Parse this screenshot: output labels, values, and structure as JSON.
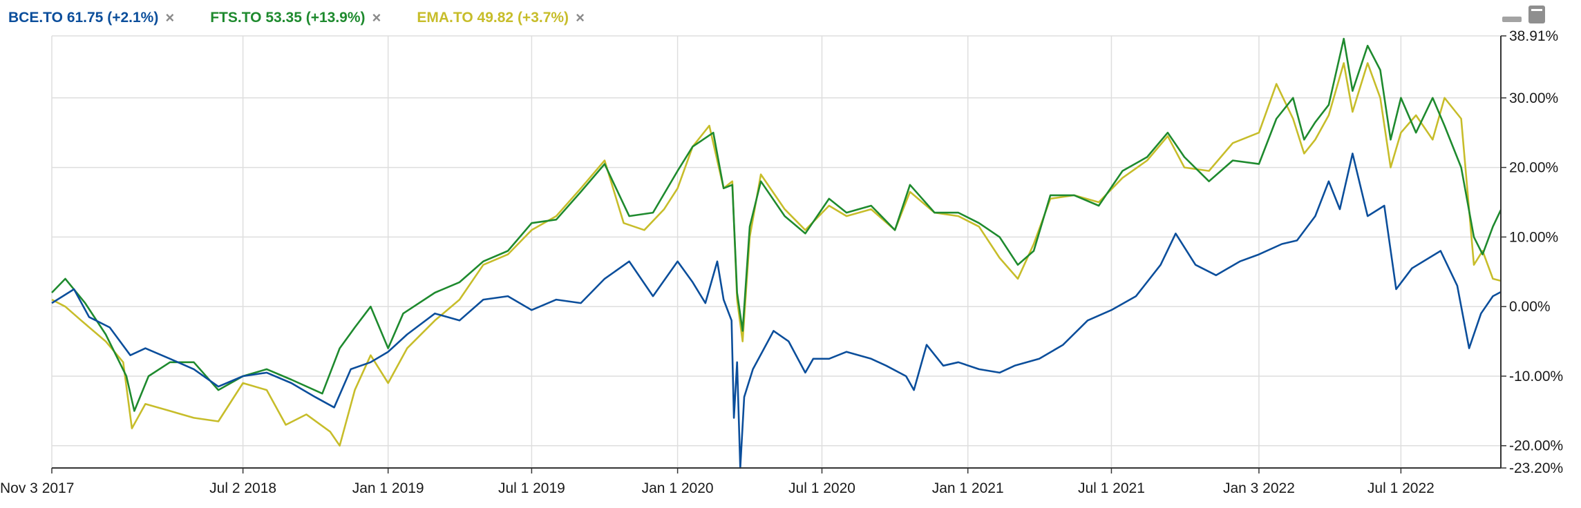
{
  "legend": [
    {
      "ticker": "BCE.TO",
      "price": "61.75",
      "change": "(+2.1%)",
      "color": "#0b4e9b",
      "remove_icon": "×"
    },
    {
      "ticker": "FTS.TO",
      "price": "53.35",
      "change": "(+13.9%)",
      "color": "#1e8a2e",
      "remove_icon": "×"
    },
    {
      "ticker": "EMA.TO",
      "price": "49.82",
      "change": "(+3.7%)",
      "color": "#c7bd2a",
      "remove_icon": "×"
    }
  ],
  "window_controls": {
    "minimize_icon": "minimize-icon",
    "maximize_icon": "maximize-icon"
  },
  "chart_data": {
    "type": "line",
    "title": "",
    "xlabel": "",
    "ylabel": "",
    "x_range": [
      "2017-11-03",
      "2022-11-04"
    ],
    "ylim": [
      -23.2,
      38.91
    ],
    "grid": true,
    "legend_position": "top-left",
    "x_ticks": [
      {
        "label": "Nov 3 2017",
        "date": "2017-11-03"
      },
      {
        "label": "Jul 2 2018",
        "date": "2018-07-02"
      },
      {
        "label": "Jan 1 2019",
        "date": "2019-01-01"
      },
      {
        "label": "Jul 1 2019",
        "date": "2019-07-01"
      },
      {
        "label": "Jan 1 2020",
        "date": "2020-01-01"
      },
      {
        "label": "Jul 1 2020",
        "date": "2020-07-01"
      },
      {
        "label": "Jan 1 2021",
        "date": "2021-01-01"
      },
      {
        "label": "Jul 1 2021",
        "date": "2021-07-01"
      },
      {
        "label": "Jan 3 2022",
        "date": "2022-01-03"
      },
      {
        "label": "Jul 1 2022",
        "date": "2022-07-01"
      }
    ],
    "y_ticks": [
      {
        "label": "38.91%",
        "value": 38.91
      },
      {
        "label": "30.00%",
        "value": 30
      },
      {
        "label": "20.00%",
        "value": 20
      },
      {
        "label": "10.00%",
        "value": 10
      },
      {
        "label": "0.00%",
        "value": 0
      },
      {
        "label": "-10.00%",
        "value": -10
      },
      {
        "label": "-20.00%",
        "value": -20
      },
      {
        "label": "-23.20%",
        "value": -23.2
      }
    ],
    "series": [
      {
        "name": "BCE.TO",
        "color": "#0b4e9b",
        "points": [
          [
            "2017-11-03",
            0.5
          ],
          [
            "2017-12-01",
            2.5
          ],
          [
            "2017-12-20",
            -1.5
          ],
          [
            "2018-01-15",
            -3
          ],
          [
            "2018-02-10",
            -7
          ],
          [
            "2018-03-01",
            -6
          ],
          [
            "2018-04-01",
            -7.5
          ],
          [
            "2018-05-01",
            -9
          ],
          [
            "2018-06-01",
            -11.5
          ],
          [
            "2018-07-02",
            -10
          ],
          [
            "2018-08-01",
            -9.5
          ],
          [
            "2018-09-01",
            -11
          ],
          [
            "2018-10-01",
            -13
          ],
          [
            "2018-10-25",
            -14.5
          ],
          [
            "2018-11-15",
            -9
          ],
          [
            "2018-12-10",
            -8
          ],
          [
            "2019-01-01",
            -6.5
          ],
          [
            "2019-01-25",
            -4
          ],
          [
            "2019-03-01",
            -1
          ],
          [
            "2019-04-01",
            -2
          ],
          [
            "2019-05-01",
            1
          ],
          [
            "2019-06-01",
            1.5
          ],
          [
            "2019-07-01",
            -0.5
          ],
          [
            "2019-08-01",
            1
          ],
          [
            "2019-09-01",
            0.5
          ],
          [
            "2019-10-01",
            4
          ],
          [
            "2019-11-01",
            6.5
          ],
          [
            "2019-12-01",
            1.5
          ],
          [
            "2020-01-01",
            6.5
          ],
          [
            "2020-01-20",
            3.5
          ],
          [
            "2020-02-05",
            0.5
          ],
          [
            "2020-02-20",
            6.5
          ],
          [
            "2020-02-28",
            1
          ],
          [
            "2020-03-09",
            -2
          ],
          [
            "2020-03-12",
            -16
          ],
          [
            "2020-03-16",
            -8
          ],
          [
            "2020-03-20",
            -23.2
          ],
          [
            "2020-03-25",
            -13
          ],
          [
            "2020-04-05",
            -9
          ],
          [
            "2020-05-01",
            -3.5
          ],
          [
            "2020-05-20",
            -5
          ],
          [
            "2020-06-10",
            -9.5
          ],
          [
            "2020-06-20",
            -7.5
          ],
          [
            "2020-07-10",
            -7.5
          ],
          [
            "2020-08-01",
            -6.5
          ],
          [
            "2020-09-01",
            -7.5
          ],
          [
            "2020-09-20",
            -8.5
          ],
          [
            "2020-10-15",
            -10
          ],
          [
            "2020-10-25",
            -12
          ],
          [
            "2020-11-10",
            -5.5
          ],
          [
            "2020-12-01",
            -8.5
          ],
          [
            "2020-12-20",
            -8
          ],
          [
            "2021-01-15",
            -9
          ],
          [
            "2021-02-10",
            -9.5
          ],
          [
            "2021-03-01",
            -8.5
          ],
          [
            "2021-04-01",
            -7.5
          ],
          [
            "2021-05-01",
            -5.5
          ],
          [
            "2021-06-01",
            -2
          ],
          [
            "2021-07-01",
            -0.5
          ],
          [
            "2021-08-01",
            1.5
          ],
          [
            "2021-09-01",
            6
          ],
          [
            "2021-09-20",
            10.5
          ],
          [
            "2021-10-15",
            6
          ],
          [
            "2021-11-10",
            4.5
          ],
          [
            "2021-12-10",
            6.5
          ],
          [
            "2022-01-03",
            7.5
          ],
          [
            "2022-02-01",
            9
          ],
          [
            "2022-02-20",
            9.5
          ],
          [
            "2022-03-15",
            13
          ],
          [
            "2022-04-01",
            18
          ],
          [
            "2022-04-15",
            14
          ],
          [
            "2022-05-01",
            22
          ],
          [
            "2022-05-20",
            13
          ],
          [
            "2022-06-10",
            14.5
          ],
          [
            "2022-06-25",
            2.5
          ],
          [
            "2022-07-15",
            5.5
          ],
          [
            "2022-08-20",
            8
          ],
          [
            "2022-09-10",
            3
          ],
          [
            "2022-09-25",
            -6
          ],
          [
            "2022-10-10",
            -1
          ],
          [
            "2022-10-25",
            1.5
          ],
          [
            "2022-11-04",
            2.1
          ]
        ]
      },
      {
        "name": "FTS.TO",
        "color": "#1e8a2e",
        "points": [
          [
            "2017-11-03",
            2
          ],
          [
            "2017-11-20",
            4
          ],
          [
            "2017-12-15",
            0.5
          ],
          [
            "2018-01-10",
            -4
          ],
          [
            "2018-02-05",
            -10
          ],
          [
            "2018-02-15",
            -15
          ],
          [
            "2018-03-05",
            -10
          ],
          [
            "2018-04-01",
            -8
          ],
          [
            "2018-05-01",
            -8
          ],
          [
            "2018-06-01",
            -12
          ],
          [
            "2018-07-02",
            -10
          ],
          [
            "2018-08-01",
            -9
          ],
          [
            "2018-09-01",
            -10.5
          ],
          [
            "2018-10-10",
            -12.5
          ],
          [
            "2018-11-01",
            -6
          ],
          [
            "2018-11-20",
            -3
          ],
          [
            "2018-12-10",
            0
          ],
          [
            "2019-01-01",
            -6
          ],
          [
            "2019-01-20",
            -1
          ],
          [
            "2019-03-01",
            2
          ],
          [
            "2019-04-01",
            3.5
          ],
          [
            "2019-05-01",
            6.5
          ],
          [
            "2019-06-01",
            8
          ],
          [
            "2019-07-01",
            12
          ],
          [
            "2019-08-01",
            12.5
          ],
          [
            "2019-09-01",
            16.5
          ],
          [
            "2019-10-01",
            20.5
          ],
          [
            "2019-11-01",
            13
          ],
          [
            "2019-12-01",
            13.5
          ],
          [
            "2020-01-01",
            19.5
          ],
          [
            "2020-01-20",
            23
          ],
          [
            "2020-02-15",
            25
          ],
          [
            "2020-02-28",
            17
          ],
          [
            "2020-03-10",
            17.5
          ],
          [
            "2020-03-16",
            2
          ],
          [
            "2020-03-23",
            -3.5
          ],
          [
            "2020-04-01",
            11.5
          ],
          [
            "2020-04-15",
            18
          ],
          [
            "2020-05-15",
            13
          ],
          [
            "2020-06-10",
            10.5
          ],
          [
            "2020-07-10",
            15.5
          ],
          [
            "2020-08-01",
            13.5
          ],
          [
            "2020-09-01",
            14.5
          ],
          [
            "2020-10-01",
            11
          ],
          [
            "2020-10-20",
            17.5
          ],
          [
            "2020-11-20",
            13.5
          ],
          [
            "2020-12-20",
            13.5
          ],
          [
            "2021-01-15",
            12
          ],
          [
            "2021-02-10",
            10
          ],
          [
            "2021-03-05",
            6
          ],
          [
            "2021-03-25",
            8
          ],
          [
            "2021-04-15",
            16
          ],
          [
            "2021-05-15",
            16
          ],
          [
            "2021-06-15",
            14.5
          ],
          [
            "2021-07-15",
            19.5
          ],
          [
            "2021-08-15",
            21.5
          ],
          [
            "2021-09-10",
            25
          ],
          [
            "2021-10-01",
            21.5
          ],
          [
            "2021-11-01",
            18
          ],
          [
            "2021-12-01",
            21
          ],
          [
            "2022-01-03",
            20.5
          ],
          [
            "2022-01-25",
            27
          ],
          [
            "2022-02-15",
            30
          ],
          [
            "2022-03-01",
            24
          ],
          [
            "2022-03-15",
            26.5
          ],
          [
            "2022-04-01",
            29
          ],
          [
            "2022-04-20",
            38.5
          ],
          [
            "2022-05-01",
            31
          ],
          [
            "2022-05-20",
            37.5
          ],
          [
            "2022-06-05",
            34
          ],
          [
            "2022-06-18",
            24
          ],
          [
            "2022-07-01",
            30
          ],
          [
            "2022-07-20",
            25
          ],
          [
            "2022-08-10",
            30
          ],
          [
            "2022-08-25",
            26
          ],
          [
            "2022-09-15",
            20
          ],
          [
            "2022-10-01",
            10
          ],
          [
            "2022-10-12",
            7.5
          ],
          [
            "2022-10-25",
            11.5
          ],
          [
            "2022-11-04",
            13.9
          ]
        ]
      },
      {
        "name": "EMA.TO",
        "color": "#c7bd2a",
        "points": [
          [
            "2017-11-03",
            1
          ],
          [
            "2017-11-20",
            0
          ],
          [
            "2017-12-10",
            -2
          ],
          [
            "2018-01-10",
            -5
          ],
          [
            "2018-02-01",
            -8
          ],
          [
            "2018-02-12",
            -17.5
          ],
          [
            "2018-03-01",
            -14
          ],
          [
            "2018-04-01",
            -15
          ],
          [
            "2018-05-01",
            -16
          ],
          [
            "2018-06-01",
            -16.5
          ],
          [
            "2018-07-02",
            -11
          ],
          [
            "2018-08-01",
            -12
          ],
          [
            "2018-08-25",
            -17
          ],
          [
            "2018-09-20",
            -15.5
          ],
          [
            "2018-10-20",
            -18
          ],
          [
            "2018-11-01",
            -20
          ],
          [
            "2018-11-20",
            -12
          ],
          [
            "2018-12-10",
            -7
          ],
          [
            "2019-01-01",
            -11
          ],
          [
            "2019-01-25",
            -6
          ],
          [
            "2019-03-01",
            -2
          ],
          [
            "2019-04-01",
            1
          ],
          [
            "2019-05-01",
            6
          ],
          [
            "2019-06-01",
            7.5
          ],
          [
            "2019-07-01",
            11
          ],
          [
            "2019-08-01",
            13
          ],
          [
            "2019-09-01",
            17
          ],
          [
            "2019-10-01",
            21
          ],
          [
            "2019-10-25",
            12
          ],
          [
            "2019-11-20",
            11
          ],
          [
            "2019-12-15",
            14
          ],
          [
            "2020-01-01",
            17
          ],
          [
            "2020-01-20",
            23
          ],
          [
            "2020-02-10",
            26
          ],
          [
            "2020-02-28",
            17
          ],
          [
            "2020-03-10",
            18
          ],
          [
            "2020-03-16",
            1
          ],
          [
            "2020-03-23",
            -5
          ],
          [
            "2020-04-01",
            10
          ],
          [
            "2020-04-15",
            19
          ],
          [
            "2020-05-15",
            14
          ],
          [
            "2020-06-10",
            11
          ],
          [
            "2020-07-10",
            14.5
          ],
          [
            "2020-08-01",
            13
          ],
          [
            "2020-09-01",
            14
          ],
          [
            "2020-10-01",
            11
          ],
          [
            "2020-10-20",
            16.5
          ],
          [
            "2020-11-20",
            13.5
          ],
          [
            "2020-12-20",
            13
          ],
          [
            "2021-01-15",
            11.5
          ],
          [
            "2021-02-10",
            7
          ],
          [
            "2021-03-05",
            4
          ],
          [
            "2021-03-25",
            9
          ],
          [
            "2021-04-15",
            15.5
          ],
          [
            "2021-05-15",
            16
          ],
          [
            "2021-06-15",
            15
          ],
          [
            "2021-07-15",
            18.5
          ],
          [
            "2021-08-15",
            21
          ],
          [
            "2021-09-10",
            24.5
          ],
          [
            "2021-10-01",
            20
          ],
          [
            "2021-11-01",
            19.5
          ],
          [
            "2021-12-01",
            23.5
          ],
          [
            "2022-01-03",
            25
          ],
          [
            "2022-01-25",
            32
          ],
          [
            "2022-02-15",
            27
          ],
          [
            "2022-03-01",
            22
          ],
          [
            "2022-03-15",
            24
          ],
          [
            "2022-04-01",
            27.5
          ],
          [
            "2022-04-20",
            35
          ],
          [
            "2022-05-01",
            28
          ],
          [
            "2022-05-20",
            35
          ],
          [
            "2022-06-05",
            30
          ],
          [
            "2022-06-18",
            20
          ],
          [
            "2022-07-01",
            25
          ],
          [
            "2022-07-20",
            27.5
          ],
          [
            "2022-08-10",
            24
          ],
          [
            "2022-08-25",
            30
          ],
          [
            "2022-09-15",
            27
          ],
          [
            "2022-10-01",
            6
          ],
          [
            "2022-10-12",
            8
          ],
          [
            "2022-10-25",
            4
          ],
          [
            "2022-11-04",
            3.7
          ]
        ]
      }
    ]
  }
}
